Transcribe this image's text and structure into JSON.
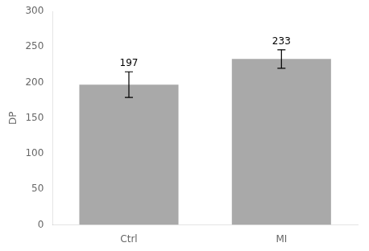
{
  "chart_data": {
    "type": "bar",
    "categories": [
      "Ctrl",
      "MI"
    ],
    "values": [
      197,
      233
    ],
    "errors": [
      18,
      13
    ],
    "color": "#a9a9a9",
    "ylabel": "DP",
    "ylim": [
      0,
      300
    ],
    "yticks": [
      0,
      50,
      100,
      150,
      200,
      250,
      300
    ],
    "grid": false,
    "data_labels": true
  }
}
